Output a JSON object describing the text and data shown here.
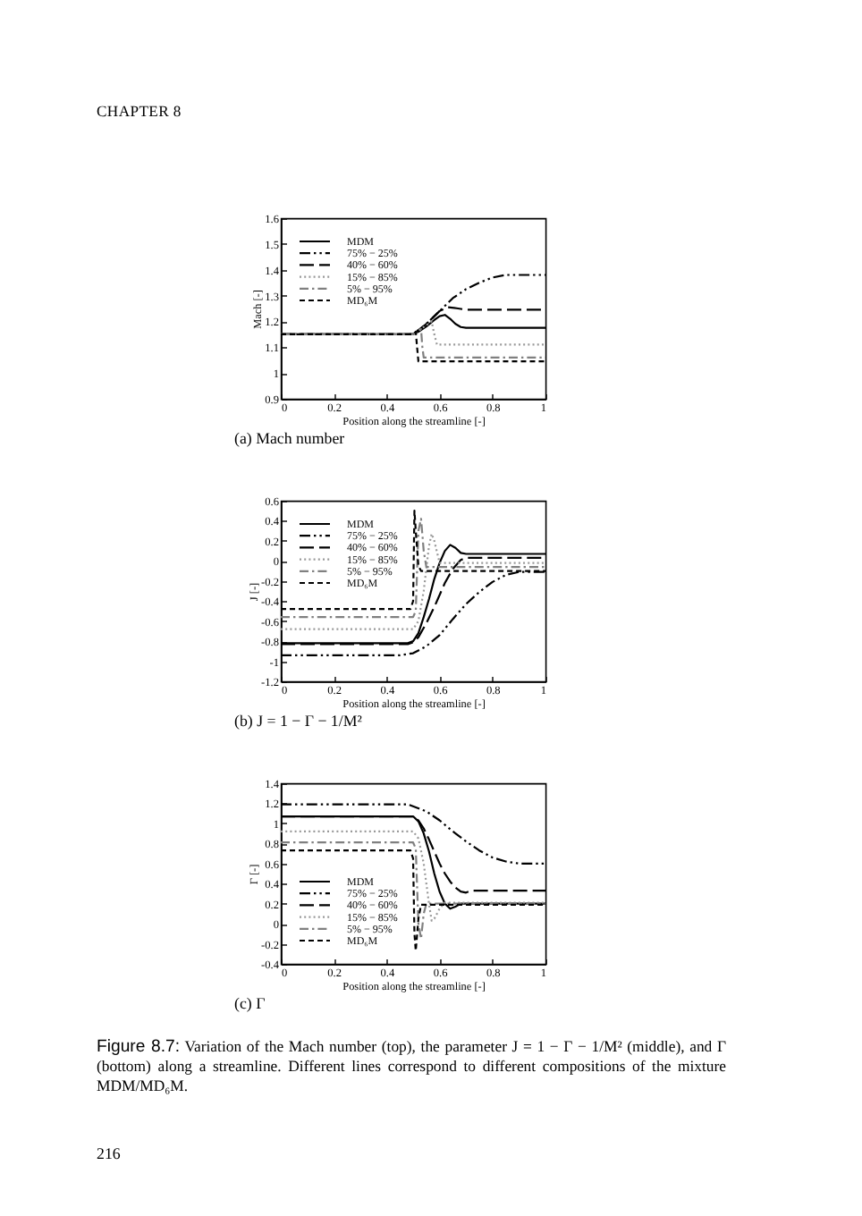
{
  "chart_data": [
    {
      "type": "line",
      "title": "(a) Mach number",
      "xlabel": "Position along the streamline [-]",
      "ylabel": "Mach [-]",
      "xlim": [
        0,
        1
      ],
      "xticks": [
        0,
        0.2,
        0.4,
        0.6,
        0.8,
        1
      ],
      "ylim": [
        0.9,
        1.6
      ],
      "yticks": [
        0.9,
        1,
        1.1,
        1.2,
        1.3,
        1.4,
        1.5,
        1.6
      ],
      "legend": "top left",
      "annotations": [
        "CHAPTER 8"
      ],
      "series": [
        {
          "name": "MDM",
          "color": "#000000",
          "line_style": "solid",
          "x": [
            0,
            0.5,
            0.52,
            0.55,
            0.58,
            0.6,
            0.62,
            0.64,
            0.66,
            0.68,
            0.7,
            1
          ],
          "values": [
            1.15,
            1.15,
            1.16,
            1.18,
            1.205,
            1.22,
            1.225,
            1.21,
            1.19,
            1.178,
            1.175,
            1.175
          ]
        },
        {
          "name": "75% − 25%",
          "color": "#000000",
          "line_style": "dashed",
          "x": [
            0,
            0.5,
            0.55,
            0.6,
            0.65,
            0.7,
            0.75,
            0.8,
            0.85,
            0.9,
            1
          ],
          "values": [
            1.15,
            1.15,
            1.19,
            1.24,
            1.29,
            1.325,
            1.35,
            1.37,
            1.38,
            1.38,
            1.38
          ]
        },
        {
          "name": "40% − 60%",
          "color": "#000000",
          "line_style": "dashed",
          "x": [
            0,
            0.5,
            0.55,
            0.6,
            0.63,
            0.67,
            0.7,
            1
          ],
          "values": [
            1.15,
            1.15,
            1.19,
            1.24,
            1.255,
            1.25,
            1.245,
            1.245
          ]
        },
        {
          "name": "15% − 85%",
          "color": "#999999",
          "line_style": "dotted",
          "x": [
            0,
            0.5,
            0.55,
            0.57,
            0.58,
            0.59,
            1
          ],
          "values": [
            1.15,
            1.15,
            1.185,
            1.2,
            1.15,
            1.11,
            1.11
          ]
        },
        {
          "name": "5% − 95%",
          "color": "#808080",
          "line_style": "dashed",
          "x": [
            0,
            0.5,
            0.53,
            0.535,
            0.54,
            1
          ],
          "values": [
            1.15,
            1.15,
            1.17,
            1.1,
            1.06,
            1.06
          ]
        },
        {
          "name": "MD₆M",
          "color": "#000000",
          "line_style": "dashed",
          "x": [
            0,
            0.5,
            0.51,
            0.515,
            0.52,
            1
          ],
          "values": [
            1.15,
            1.15,
            1.16,
            1.1,
            1.045,
            1.045
          ]
        }
      ]
    },
    {
      "type": "line",
      "title": "(b) J = 1 − Γ − 1/M²",
      "xlabel": "Position along the streamline [-]",
      "ylabel": "J [-]",
      "xlim": [
        0,
        1
      ],
      "xticks": [
        0,
        0.2,
        0.4,
        0.6,
        0.8,
        1
      ],
      "ylim": [
        -1.2,
        0.6
      ],
      "yticks": [
        -1.2,
        -1,
        -0.8,
        -0.6,
        -0.4,
        -0.2,
        0,
        0.2,
        0.4,
        0.6
      ],
      "legend": "top left",
      "series": [
        {
          "name": "MDM",
          "color": "#000000",
          "line_style": "solid",
          "x": [
            0,
            0.48,
            0.5,
            0.52,
            0.54,
            0.56,
            0.58,
            0.6,
            0.62,
            0.64,
            0.66,
            0.68,
            0.7,
            1
          ],
          "values": [
            -0.82,
            -0.82,
            -0.8,
            -0.72,
            -0.56,
            -0.38,
            -0.18,
            -0.02,
            0.1,
            0.16,
            0.13,
            0.08,
            0.07,
            0.07
          ]
        },
        {
          "name": "75% − 25%",
          "color": "#000000",
          "line_style": "dashed",
          "x": [
            0,
            0.45,
            0.5,
            0.55,
            0.6,
            0.65,
            0.7,
            0.75,
            0.8,
            0.85,
            0.9,
            1
          ],
          "values": [
            -0.94,
            -0.94,
            -0.92,
            -0.85,
            -0.74,
            -0.58,
            -0.43,
            -0.31,
            -0.21,
            -0.14,
            -0.11,
            -0.11
          ]
        },
        {
          "name": "40% − 60%",
          "color": "#000000",
          "line_style": "dashed",
          "x": [
            0,
            0.48,
            0.5,
            0.52,
            0.55,
            0.58,
            0.6,
            0.62,
            0.65,
            0.68,
            0.7,
            1
          ],
          "values": [
            -0.83,
            -0.83,
            -0.81,
            -0.76,
            -0.62,
            -0.46,
            -0.34,
            -0.22,
            -0.08,
            0.01,
            0.03,
            0.03
          ]
        },
        {
          "name": "15% − 85%",
          "color": "#999999",
          "line_style": "dotted",
          "x": [
            0,
            0.5,
            0.52,
            0.54,
            0.56,
            0.57,
            0.58,
            0.6,
            1
          ],
          "values": [
            -0.68,
            -0.68,
            -0.6,
            -0.3,
            0.15,
            0.27,
            0.2,
            -0.02,
            -0.02
          ]
        },
        {
          "name": "5% − 95%",
          "color": "#808080",
          "line_style": "dashed",
          "x": [
            0,
            0.5,
            0.51,
            0.52,
            0.53,
            0.54,
            0.55,
            1
          ],
          "values": [
            -0.56,
            -0.56,
            -0.5,
            0.3,
            0.42,
            0.1,
            -0.06,
            -0.06
          ]
        },
        {
          "name": "MD₆M",
          "color": "#000000",
          "line_style": "dashed",
          "x": [
            0,
            0.49,
            0.5,
            0.505,
            0.51,
            0.52,
            0.53,
            1
          ],
          "values": [
            -0.48,
            -0.48,
            -0.4,
            0.5,
            0.3,
            -0.05,
            -0.1,
            -0.1
          ]
        }
      ]
    },
    {
      "type": "line",
      "title": "(c) Γ",
      "xlabel": "Position along the streamline [-]",
      "ylabel": "Γ [-]",
      "xlim": [
        0,
        1
      ],
      "xticks": [
        0,
        0.2,
        0.4,
        0.6,
        0.8,
        1
      ],
      "ylim": [
        -0.4,
        1.4
      ],
      "yticks": [
        -0.4,
        -0.2,
        0,
        0.2,
        0.4,
        0.6,
        0.8,
        1,
        1.2,
        1.4
      ],
      "legend": "bottom left",
      "annotations": [
        "Figure 8.7: Variation of the Mach number (top), the parameter J = 1 − Γ − 1/M² (middle), and Γ (bottom) along a streamline. Different lines correspond to different compositions of the mixture MDM/MD₆M.",
        "216"
      ],
      "series": [
        {
          "name": "MDM",
          "color": "#000000",
          "line_style": "solid",
          "x": [
            0,
            0.5,
            0.52,
            0.54,
            0.56,
            0.58,
            0.6,
            0.62,
            0.64,
            0.66,
            0.68,
            0.7,
            1
          ],
          "values": [
            1.07,
            1.07,
            1.02,
            0.9,
            0.72,
            0.5,
            0.32,
            0.2,
            0.15,
            0.17,
            0.2,
            0.2,
            0.2
          ]
        },
        {
          "name": "75% − 25%",
          "color": "#000000",
          "line_style": "dashed",
          "x": [
            0,
            0.48,
            0.55,
            0.6,
            0.65,
            0.7,
            0.75,
            0.8,
            0.85,
            0.9,
            1
          ],
          "values": [
            1.19,
            1.19,
            1.12,
            1.03,
            0.92,
            0.82,
            0.73,
            0.66,
            0.62,
            0.6,
            0.6
          ]
        },
        {
          "name": "40% − 60%",
          "color": "#000000",
          "line_style": "dashed",
          "x": [
            0,
            0.5,
            0.52,
            0.54,
            0.56,
            0.58,
            0.6,
            0.62,
            0.64,
            0.66,
            0.68,
            0.7,
            0.72,
            1
          ],
          "values": [
            1.07,
            1.07,
            1.03,
            0.95,
            0.84,
            0.72,
            0.6,
            0.5,
            0.42,
            0.36,
            0.32,
            0.31,
            0.33,
            0.33
          ]
        },
        {
          "name": "15% − 85%",
          "color": "#999999",
          "line_style": "dotted",
          "x": [
            0,
            0.5,
            0.52,
            0.54,
            0.56,
            0.57,
            0.58,
            0.6,
            0.62,
            1
          ],
          "values": [
            0.92,
            0.92,
            0.85,
            0.6,
            0.2,
            0.03,
            0.05,
            0.15,
            0.21,
            0.21
          ]
        },
        {
          "name": "5% − 95%",
          "color": "#808080",
          "line_style": "dashed",
          "x": [
            0,
            0.5,
            0.51,
            0.52,
            0.53,
            0.54,
            0.55,
            1
          ],
          "values": [
            0.81,
            0.81,
            0.75,
            0.0,
            -0.15,
            0.1,
            0.2,
            0.2
          ]
        },
        {
          "name": "MD₆M",
          "color": "#000000",
          "line_style": "dashed",
          "x": [
            0,
            0.49,
            0.5,
            0.505,
            0.51,
            0.52,
            0.53,
            1
          ],
          "values": [
            0.73,
            0.73,
            0.65,
            -0.1,
            -0.27,
            0.05,
            0.19,
            0.19
          ]
        }
      ]
    }
  ]
}
